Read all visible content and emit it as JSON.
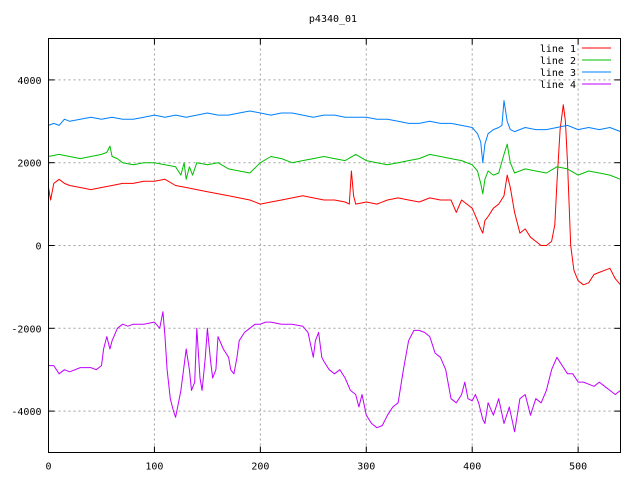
{
  "chart_data": {
    "type": "line",
    "title": "p4340_01",
    "xlabel": "",
    "ylabel": "",
    "xlim": [
      0,
      540
    ],
    "ylim": [
      -5000,
      5000
    ],
    "xticks": [
      0,
      100,
      200,
      300,
      400,
      500
    ],
    "yticks": [
      -4000,
      -2000,
      0,
      2000,
      4000
    ],
    "grid": true,
    "legend_position": "top-right",
    "series": [
      {
        "name": "line 1",
        "color": "#ff0000",
        "x": [
          0,
          2,
          5,
          10,
          15,
          20,
          30,
          40,
          50,
          60,
          70,
          80,
          90,
          100,
          110,
          120,
          130,
          140,
          150,
          160,
          170,
          180,
          190,
          200,
          210,
          220,
          230,
          240,
          250,
          260,
          270,
          280,
          284,
          286,
          288,
          290,
          300,
          310,
          320,
          330,
          340,
          350,
          360,
          370,
          380,
          385,
          390,
          395,
          400,
          405,
          408,
          410,
          412,
          415,
          420,
          425,
          430,
          433,
          436,
          440,
          445,
          450,
          455,
          460,
          465,
          470,
          475,
          478,
          480,
          483,
          486,
          488,
          490,
          493,
          496,
          500,
          505,
          510,
          515,
          520,
          525,
          530,
          535,
          540
        ],
        "y": [
          1400,
          1100,
          1500,
          1600,
          1500,
          1450,
          1400,
          1350,
          1400,
          1450,
          1500,
          1500,
          1550,
          1550,
          1600,
          1450,
          1400,
          1350,
          1300,
          1250,
          1200,
          1150,
          1100,
          1000,
          1050,
          1100,
          1150,
          1200,
          1150,
          1100,
          1100,
          1050,
          1000,
          1800,
          1200,
          1000,
          1050,
          1000,
          1100,
          1150,
          1100,
          1050,
          1150,
          1100,
          1100,
          800,
          1100,
          1000,
          900,
          600,
          400,
          300,
          600,
          700,
          900,
          1000,
          1200,
          1700,
          1400,
          800,
          300,
          400,
          200,
          100,
          0,
          0,
          100,
          500,
          1500,
          2800,
          3400,
          3000,
          2000,
          0,
          -600,
          -850,
          -950,
          -900,
          -700,
          -650,
          -600,
          -550,
          -800,
          -950
        ]
      },
      {
        "name": "line 2",
        "color": "#00c000",
        "x": [
          0,
          10,
          20,
          30,
          40,
          50,
          55,
          58,
          60,
          65,
          70,
          80,
          90,
          100,
          110,
          120,
          125,
          128,
          130,
          133,
          136,
          140,
          150,
          160,
          170,
          180,
          190,
          200,
          210,
          220,
          230,
          240,
          250,
          260,
          270,
          280,
          290,
          300,
          310,
          320,
          330,
          340,
          350,
          360,
          370,
          380,
          390,
          400,
          405,
          408,
          410,
          412,
          415,
          420,
          425,
          430,
          433,
          436,
          440,
          450,
          460,
          470,
          480,
          490,
          500,
          510,
          520,
          530,
          540
        ],
        "y": [
          2150,
          2200,
          2150,
          2100,
          2150,
          2200,
          2250,
          2400,
          2150,
          2100,
          2000,
          1950,
          2000,
          2000,
          1950,
          1900,
          1700,
          2000,
          1600,
          1900,
          1700,
          2000,
          1950,
          2000,
          1850,
          1800,
          1750,
          2000,
          2150,
          2100,
          2000,
          2050,
          2100,
          2150,
          2100,
          2050,
          2200,
          2050,
          2000,
          1950,
          2000,
          2050,
          2100,
          2200,
          2150,
          2100,
          2050,
          1950,
          1800,
          1500,
          1250,
          1600,
          1800,
          1700,
          1750,
          2200,
          2450,
          2000,
          1750,
          1850,
          1800,
          1750,
          1900,
          1850,
          1700,
          1800,
          1750,
          1700,
          1600
        ]
      },
      {
        "name": "line 3",
        "color": "#0080ff",
        "x": [
          0,
          5,
          10,
          15,
          20,
          30,
          40,
          50,
          60,
          70,
          80,
          90,
          100,
          110,
          120,
          130,
          140,
          150,
          160,
          170,
          180,
          190,
          200,
          210,
          220,
          230,
          240,
          250,
          260,
          270,
          280,
          290,
          300,
          310,
          320,
          330,
          340,
          350,
          360,
          370,
          380,
          390,
          400,
          405,
          408,
          410,
          412,
          415,
          420,
          425,
          428,
          430,
          433,
          436,
          440,
          450,
          460,
          470,
          480,
          490,
          500,
          510,
          520,
          530,
          540
        ],
        "y": [
          2900,
          2950,
          2900,
          3050,
          3000,
          3050,
          3100,
          3050,
          3100,
          3050,
          3050,
          3100,
          3150,
          3100,
          3150,
          3100,
          3150,
          3200,
          3150,
          3150,
          3200,
          3250,
          3200,
          3150,
          3200,
          3200,
          3150,
          3100,
          3150,
          3150,
          3100,
          3100,
          3100,
          3050,
          3050,
          3000,
          2950,
          2950,
          3000,
          2950,
          2950,
          2900,
          2850,
          2700,
          2500,
          2000,
          2450,
          2700,
          2800,
          2850,
          2900,
          3500,
          3000,
          2800,
          2750,
          2850,
          2800,
          2800,
          2850,
          2900,
          2800,
          2850,
          2800,
          2850,
          2750
        ]
      },
      {
        "name": "line 4",
        "color": "#c000ff",
        "x": [
          0,
          5,
          10,
          15,
          20,
          30,
          40,
          45,
          50,
          52,
          55,
          58,
          60,
          65,
          70,
          75,
          80,
          90,
          100,
          105,
          108,
          110,
          112,
          115,
          118,
          120,
          125,
          130,
          133,
          135,
          138,
          140,
          143,
          145,
          148,
          150,
          153,
          155,
          158,
          160,
          165,
          170,
          172,
          175,
          178,
          180,
          185,
          190,
          195,
          200,
          205,
          210,
          220,
          230,
          240,
          245,
          250,
          252,
          255,
          258,
          260,
          265,
          270,
          275,
          280,
          285,
          290,
          293,
          296,
          300,
          305,
          310,
          315,
          320,
          325,
          330,
          335,
          340,
          345,
          350,
          355,
          360,
          365,
          370,
          375,
          380,
          385,
          390,
          393,
          396,
          400,
          403,
          406,
          410,
          412,
          415,
          420,
          425,
          430,
          435,
          440,
          445,
          450,
          455,
          460,
          465,
          470,
          475,
          480,
          485,
          490,
          495,
          500,
          505,
          510,
          515,
          520,
          525,
          530,
          535,
          540
        ],
        "y": [
          -2900,
          -2900,
          -3100,
          -3000,
          -3050,
          -2950,
          -2950,
          -3000,
          -2900,
          -2500,
          -2200,
          -2500,
          -2300,
          -2000,
          -1900,
          -1950,
          -1900,
          -1900,
          -1850,
          -2000,
          -1600,
          -2200,
          -3000,
          -3700,
          -4000,
          -4150,
          -3500,
          -2500,
          -3000,
          -3500,
          -3300,
          -2000,
          -3200,
          -3500,
          -2700,
          -2000,
          -2800,
          -3200,
          -3000,
          -2200,
          -2500,
          -2700,
          -3000,
          -3100,
          -2700,
          -2300,
          -2100,
          -2000,
          -1900,
          -1900,
          -1850,
          -1850,
          -1900,
          -1900,
          -1950,
          -2100,
          -2700,
          -2300,
          -2100,
          -2700,
          -2800,
          -3000,
          -3100,
          -3000,
          -3200,
          -3500,
          -3600,
          -3900,
          -3600,
          -4100,
          -4300,
          -4400,
          -4350,
          -4100,
          -3900,
          -3800,
          -3000,
          -2300,
          -2050,
          -2050,
          -2100,
          -2200,
          -2600,
          -2700,
          -3000,
          -3700,
          -3800,
          -3600,
          -3300,
          -3700,
          -3750,
          -3600,
          -3800,
          -4200,
          -4300,
          -3800,
          -4100,
          -3700,
          -4300,
          -3900,
          -4500,
          -3700,
          -3600,
          -4100,
          -3700,
          -3800,
          -3500,
          -3000,
          -2700,
          -2900,
          -3100,
          -3100,
          -3300,
          -3300,
          -3350,
          -3400,
          -3300,
          -3400,
          -3500,
          -3600,
          -3500
        ]
      }
    ]
  }
}
